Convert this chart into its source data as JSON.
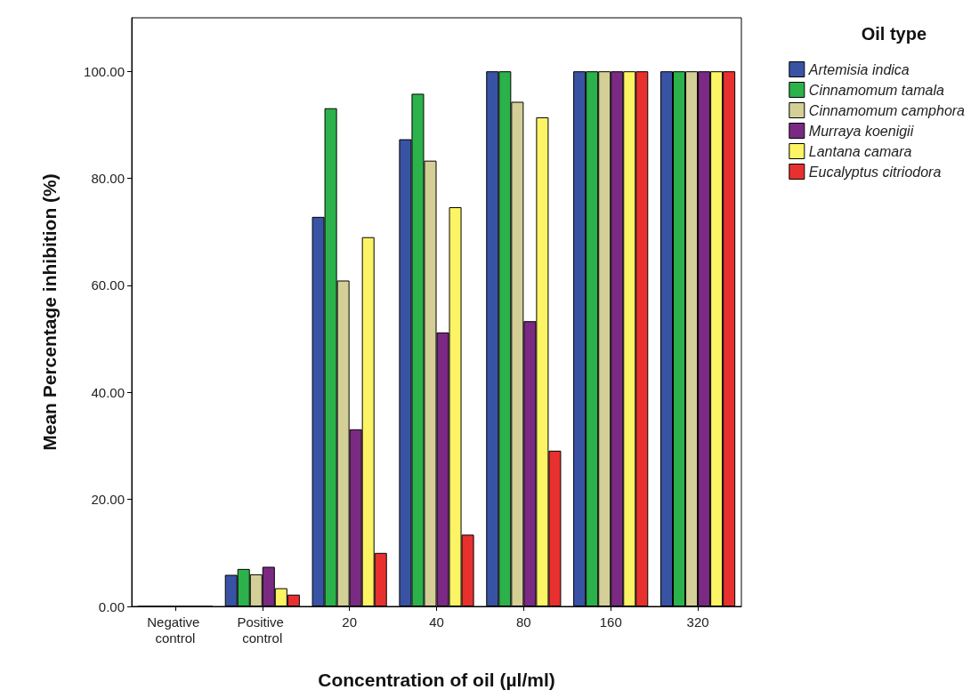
{
  "chart_data": {
    "type": "bar",
    "xlabel": "Concentration of oil (µl/ml)",
    "ylabel": "Mean Percentage inhibition (%)",
    "legend_title": "Oil type",
    "categories": [
      "Negative control",
      "Positive control",
      "20",
      "40",
      "80",
      "160",
      "320"
    ],
    "series": [
      {
        "name": "Artemisia indica",
        "color": "#3953a4",
        "values": [
          0,
          5.9,
          72.8,
          87.3,
          100,
          100,
          100
        ]
      },
      {
        "name": "Cinnamomum tamala",
        "color": "#2bb24a",
        "values": [
          0,
          7.0,
          93.1,
          95.8,
          100,
          100,
          100
        ]
      },
      {
        "name": "Cinnamomum camphora",
        "color": "#d4cf96",
        "values": [
          0,
          6.0,
          60.9,
          83.3,
          94.3,
          100,
          100
        ]
      },
      {
        "name": "Murraya koenigii",
        "color": "#7b2a83",
        "values": [
          0,
          7.4,
          33.1,
          51.2,
          53.3,
          100,
          100
        ]
      },
      {
        "name": "Lantana camara",
        "color": "#fdf465",
        "values": [
          0,
          3.4,
          69.0,
          74.6,
          91.4,
          100,
          100
        ]
      },
      {
        "name": "Eucalyptus citriodora",
        "color": "#e8312f",
        "values": [
          0,
          2.2,
          10.0,
          13.4,
          29.1,
          100,
          100
        ]
      }
    ],
    "ylim": [
      0,
      110
    ],
    "yticks": [
      {
        "value": 0,
        "label": "0.00"
      },
      {
        "value": 20,
        "label": "20.00"
      },
      {
        "value": 40,
        "label": "40.00"
      },
      {
        "value": 60,
        "label": "60.00"
      },
      {
        "value": 80,
        "label": "80.00"
      },
      {
        "value": 100,
        "label": "100.00"
      }
    ],
    "grid": false,
    "legend": "right"
  }
}
